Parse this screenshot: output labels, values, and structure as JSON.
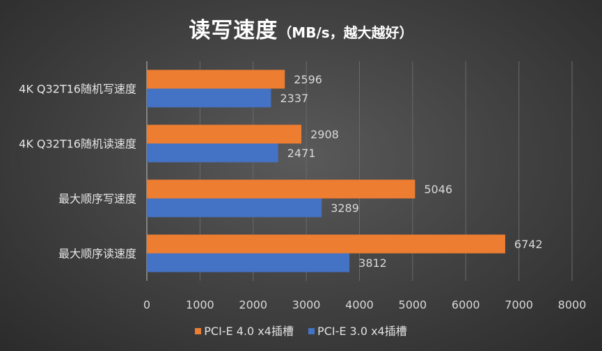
{
  "chart_data": {
    "type": "bar",
    "orientation": "horizontal",
    "title": "读写速度",
    "subtitle": "（MB/s，越大越好）",
    "categories": [
      "4K Q32T16随机写速度",
      "4K Q32T16随机读速度",
      "最大顺序写速度",
      "最大顺序读速度"
    ],
    "series": [
      {
        "name": "PCI-E 4.0 x4插槽",
        "color": "#ed7d31",
        "values": [
          2596,
          2908,
          5046,
          6742
        ]
      },
      {
        "name": "PCI-E 3.0 x4插槽",
        "color": "#4472c4",
        "values": [
          2337,
          2471,
          3289,
          3812
        ]
      }
    ],
    "xlim": [
      0,
      8000
    ],
    "xticks": [
      0,
      1000,
      2000,
      3000,
      4000,
      5000,
      6000,
      7000,
      8000
    ],
    "grid": true,
    "legend_position": "bottom",
    "data_labels": true
  }
}
